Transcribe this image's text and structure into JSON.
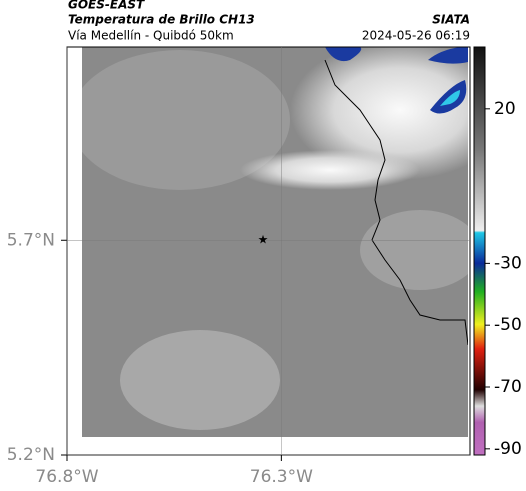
{
  "header": {
    "satellite": "GOES-EAST",
    "product": "Temperatura de Brillo CH13",
    "route": "Vía Medellín - Quibdó 50km",
    "source": "SIATA",
    "timestamp": "2024-05-26 06:19"
  },
  "map": {
    "xlim": [
      -76.8,
      -75.86
    ],
    "ylim": [
      5.2,
      6.15
    ],
    "yticks": [
      {
        "value": 5.7,
        "label": "5.7°N"
      },
      {
        "value": 5.2,
        "label": "5.2°N"
      }
    ],
    "xticks": [
      {
        "value": -76.8,
        "label": "76.8°W"
      },
      {
        "value": -76.3,
        "label": "76.3°W"
      }
    ]
  },
  "colorbar": {
    "ylim": [
      -92,
      40
    ],
    "yticks": [
      20,
      -30,
      -50,
      -70,
      -90
    ]
  }
}
